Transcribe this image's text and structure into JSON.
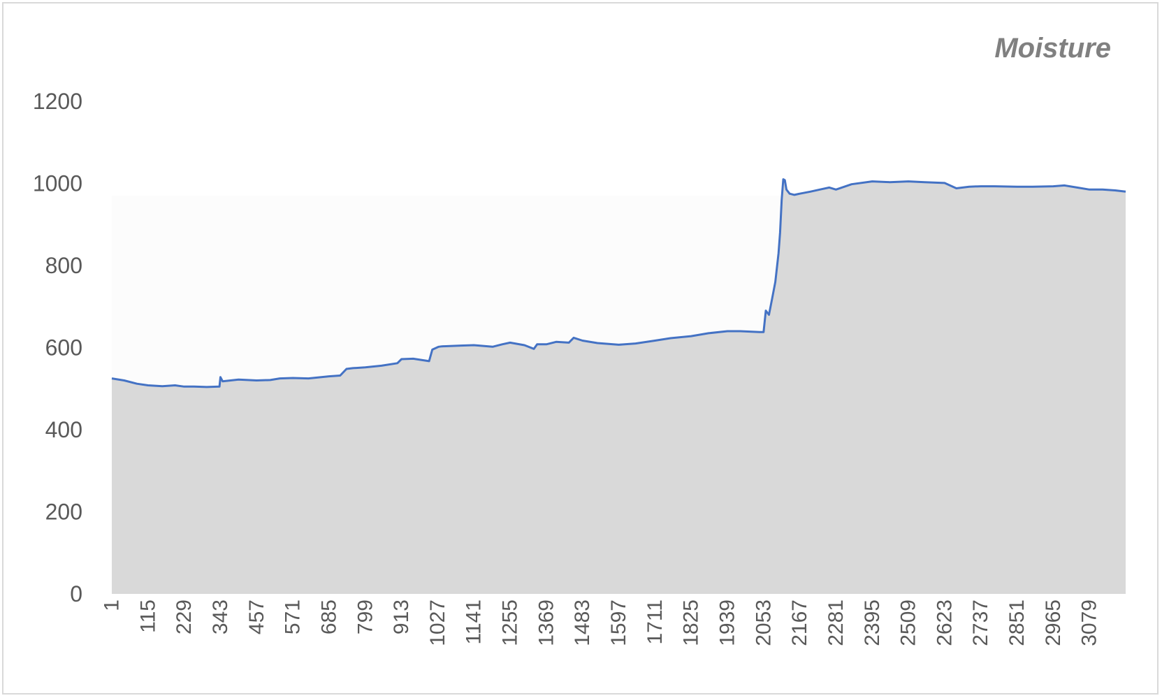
{
  "chart_data": {
    "type": "area",
    "title": "Moisture",
    "xlabel": "",
    "ylabel": "",
    "ylim": [
      0,
      1200
    ],
    "xlim": [
      1,
      3193
    ],
    "yticks": [
      0,
      200,
      400,
      600,
      800,
      1000,
      1200
    ],
    "xticks": [
      1,
      115,
      229,
      343,
      457,
      571,
      685,
      799,
      913,
      1027,
      1141,
      1255,
      1369,
      1483,
      1597,
      1711,
      1825,
      1939,
      2053,
      2167,
      2281,
      2395,
      2509,
      2623,
      2737,
      2851,
      2965,
      3079
    ],
    "grid": false,
    "legend": "none",
    "colors": {
      "area_fill": "#d9d9d9",
      "line": "#4472c4"
    },
    "series": [
      {
        "x": [
          1,
          40,
          80,
          115,
          160,
          200,
          229,
          260,
          300,
          340,
          343,
          350,
          400,
          457,
          500,
          530,
          571,
          620,
          685,
          720,
          740,
          760,
          799,
          850,
          900,
          913,
          950,
          1000,
          1010,
          1030,
          1040,
          1100,
          1141,
          1200,
          1230,
          1255,
          1300,
          1330,
          1340,
          1369,
          1400,
          1440,
          1455,
          1483,
          1530,
          1597,
          1650,
          1711,
          1760,
          1825,
          1880,
          1939,
          1980,
          2040,
          2053,
          2060,
          2070,
          2080,
          2090,
          2100,
          2105,
          2110,
          2115,
          2120,
          2125,
          2135,
          2150,
          2167,
          2200,
          2230,
          2260,
          2281,
          2330,
          2395,
          2450,
          2509,
          2560,
          2623,
          2660,
          2700,
          2737,
          2780,
          2851,
          2900,
          2965,
          3000,
          3040,
          3079,
          3120,
          3160,
          3193
        ],
        "y": [
          525,
          520,
          512,
          508,
          506,
          508,
          505,
          505,
          504,
          505,
          528,
          518,
          522,
          520,
          521,
          525,
          526,
          525,
          530,
          532,
          548,
          550,
          552,
          556,
          562,
          572,
          573,
          567,
          595,
          602,
          603,
          605,
          606,
          602,
          608,
          612,
          606,
          597,
          608,
          608,
          614,
          612,
          624,
          617,
          611,
          607,
          610,
          617,
          623,
          628,
          635,
          640,
          640,
          638,
          638,
          690,
          680,
          720,
          760,
          830,
          880,
          960,
          1010,
          1008,
          985,
          975,
          972,
          975,
          980,
          985,
          990,
          985,
          998,
          1005,
          1003,
          1005,
          1003,
          1001,
          988,
          992,
          993,
          993,
          992,
          992,
          993,
          995,
          990,
          985,
          985,
          983,
          980
        ]
      }
    ]
  }
}
